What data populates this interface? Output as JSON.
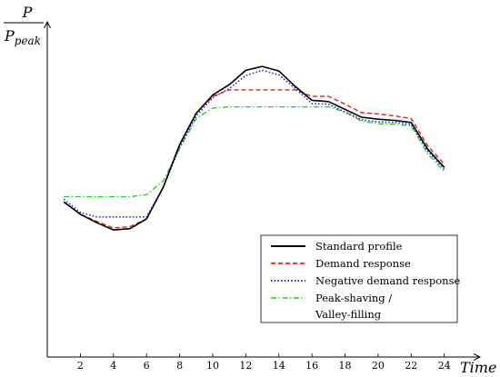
{
  "chart_data": {
    "type": "line",
    "ylabel_numerator": "P",
    "ylabel_denominator": "P",
    "ylabel_denominator_sub": "peak",
    "xlabel": "Time",
    "x_ticks": [
      2,
      4,
      6,
      8,
      10,
      12,
      14,
      16,
      18,
      20,
      22,
      24
    ],
    "xlim": [
      0,
      25.5
    ],
    "ylim": [
      0.5,
      1.02
    ],
    "grid": false,
    "legend_position": "bottom-right",
    "x": [
      1,
      2,
      3,
      4,
      5,
      6,
      7,
      8,
      9,
      10,
      11,
      12,
      13,
      14,
      15,
      16,
      17,
      18,
      19,
      20,
      21,
      22,
      23,
      24
    ],
    "series": [
      {
        "name": "Standard profile",
        "color": "#000000",
        "dash": "solid",
        "values": [
          0.738,
          0.719,
          0.706,
          0.695,
          0.697,
          0.712,
          0.76,
          0.826,
          0.874,
          0.902,
          0.918,
          0.94,
          0.946,
          0.939,
          0.915,
          0.894,
          0.892,
          0.88,
          0.868,
          0.865,
          0.863,
          0.86,
          0.819,
          0.791
        ]
      },
      {
        "name": "Demand response",
        "color": "#e0201b",
        "dash": "dashed",
        "values": [
          0.738,
          0.719,
          0.708,
          0.698,
          0.7,
          0.712,
          0.76,
          0.826,
          0.874,
          0.9,
          0.91,
          0.91,
          0.91,
          0.91,
          0.91,
          0.9,
          0.9,
          0.888,
          0.875,
          0.873,
          0.87,
          0.866,
          0.824,
          0.796
        ]
      },
      {
        "name": "Negative demand response",
        "color": "#1a2bd6",
        "dash": "dotted",
        "values": [
          0.742,
          0.722,
          0.715,
          0.715,
          0.715,
          0.715,
          0.76,
          0.822,
          0.87,
          0.898,
          0.912,
          0.932,
          0.94,
          0.933,
          0.912,
          0.889,
          0.888,
          0.876,
          0.864,
          0.861,
          0.86,
          0.857,
          0.816,
          0.788
        ]
      },
      {
        "name": "Peak-shaving / Valley-filling",
        "color": "#1fd11f",
        "dash": "dashdot",
        "values": [
          0.746,
          0.746,
          0.746,
          0.746,
          0.746,
          0.749,
          0.77,
          0.82,
          0.866,
          0.882,
          0.884,
          0.884,
          0.884,
          0.884,
          0.884,
          0.884,
          0.884,
          0.876,
          0.862,
          0.858,
          0.857,
          0.855,
          0.812,
          0.784
        ]
      }
    ],
    "legend_labels": [
      [
        "Standard profile"
      ],
      [
        "Demand response"
      ],
      [
        "Negative demand response"
      ],
      [
        "Peak-shaving /",
        "Valley-filling"
      ]
    ]
  }
}
